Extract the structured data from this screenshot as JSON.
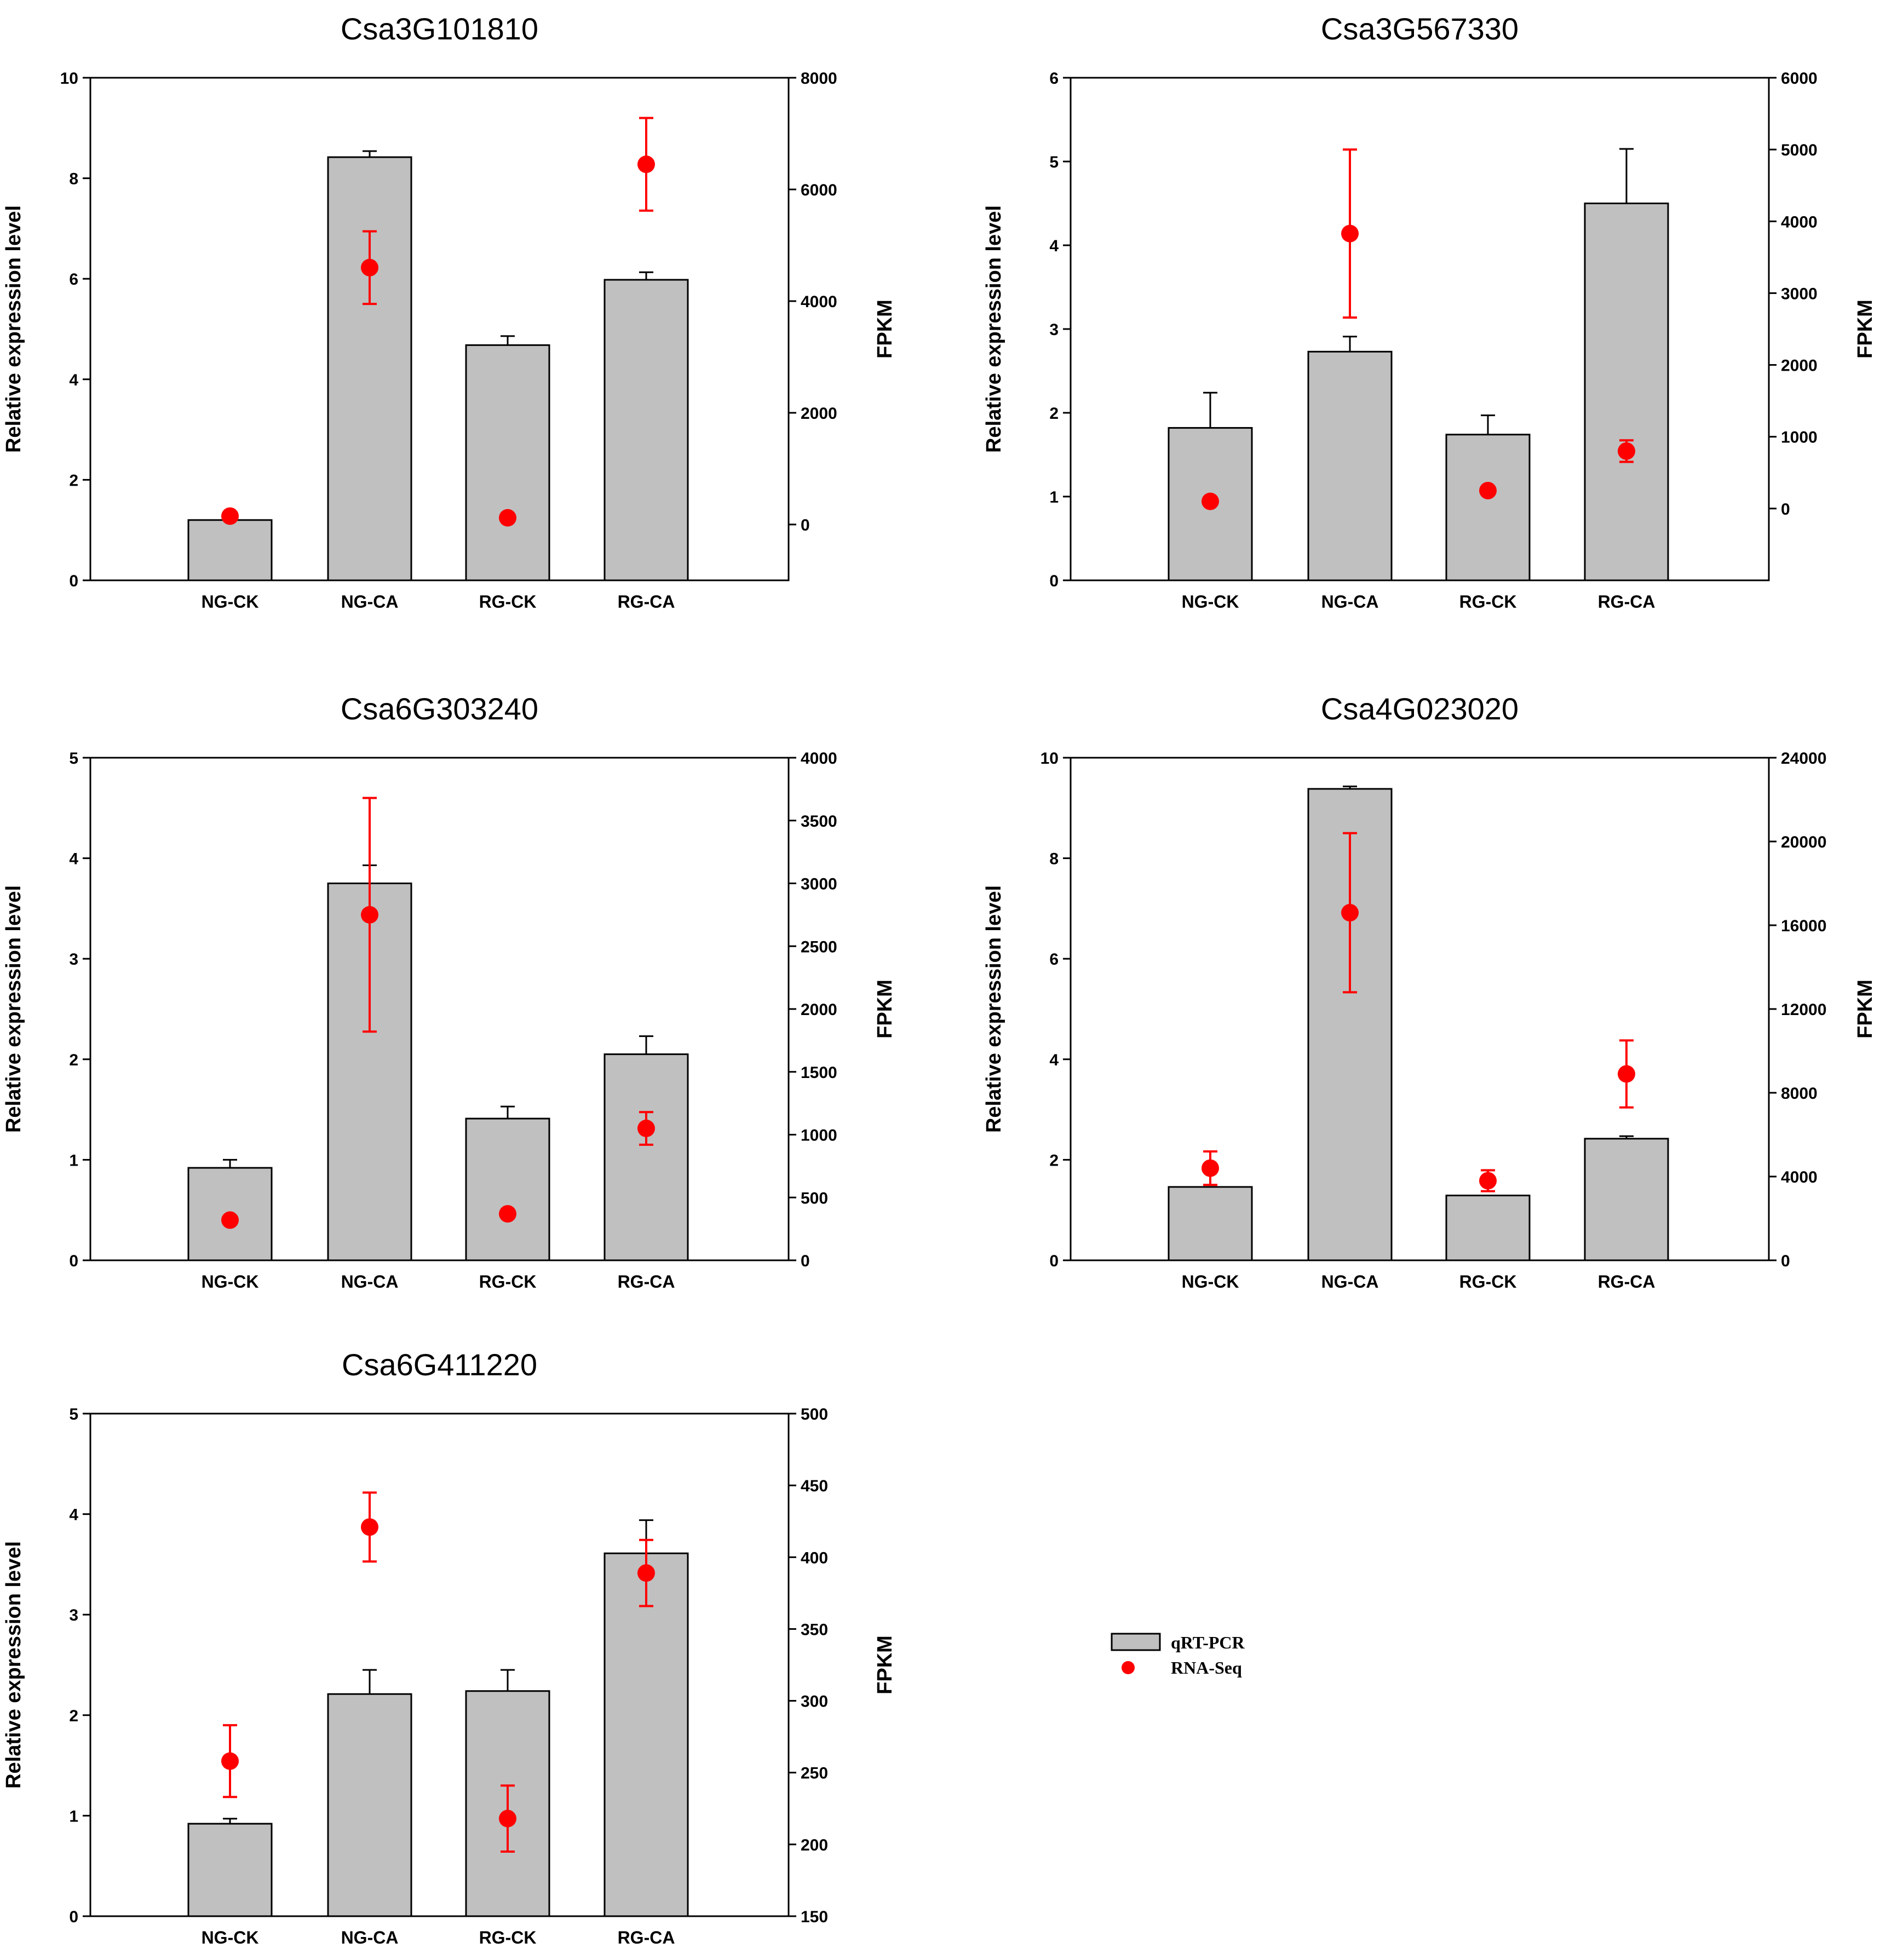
{
  "colors": {
    "bar": "#c0c0c0",
    "bar_edge": "#000000",
    "marker": "#ff0000",
    "axis": "#000000"
  },
  "legend": {
    "bar_label": "qRT-PCR",
    "marker_label": "RNA-Seq",
    "placement": "lower-right"
  },
  "chart_data": [
    {
      "type": "bar",
      "title": "Csa3G101810",
      "categories": [
        "NG-CK",
        "NG-CA",
        "RG-CK",
        "RG-CA"
      ],
      "ylabel": "Relative expression level",
      "y2label": "FPKM",
      "ylim": [
        0,
        10
      ],
      "yticks": [
        0,
        2,
        4,
        6,
        8,
        10
      ],
      "y2lim": [
        -1000,
        8000
      ],
      "y2ticks": [
        0,
        2000,
        4000,
        6000,
        8000
      ],
      "series": [
        {
          "name": "qRT-PCR",
          "axis": "left",
          "values": [
            1.2,
            8.42,
            4.68,
            5.98
          ],
          "errors": [
            0,
            0.12,
            0.18,
            0.15
          ]
        },
        {
          "name": "RNA-Seq",
          "axis": "right",
          "values": [
            150,
            4600,
            120,
            6450
          ],
          "errors": [
            0,
            650,
            0,
            830
          ]
        }
      ]
    },
    {
      "type": "bar",
      "title": "Csa3G567330",
      "categories": [
        "NG-CK",
        "NG-CA",
        "RG-CK",
        "RG-CA"
      ],
      "ylabel": "Relative expression level",
      "y2label": "FPKM",
      "ylim": [
        0,
        6
      ],
      "yticks": [
        0,
        1,
        2,
        3,
        4,
        5,
        6
      ],
      "y2lim": [
        -1000,
        6000
      ],
      "y2ticks": [
        0,
        1000,
        2000,
        3000,
        4000,
        5000,
        6000
      ],
      "series": [
        {
          "name": "qRT-PCR",
          "axis": "left",
          "values": [
            1.82,
            2.73,
            1.74,
            4.5
          ],
          "errors": [
            0.42,
            0.18,
            0.23,
            0.65
          ]
        },
        {
          "name": "RNA-Seq",
          "axis": "right",
          "values": [
            100,
            3830,
            250,
            800
          ],
          "errors": [
            0,
            1170,
            0,
            150
          ]
        }
      ]
    },
    {
      "type": "bar",
      "title": "Csa6G303240",
      "categories": [
        "NG-CK",
        "NG-CA",
        "RG-CK",
        "RG-CA"
      ],
      "ylabel": "Relative expression level",
      "y2label": "FPKM",
      "ylim": [
        0,
        5
      ],
      "yticks": [
        0,
        1,
        2,
        3,
        4,
        5
      ],
      "y2lim": [
        0,
        4000
      ],
      "y2ticks": [
        0,
        500,
        1000,
        1500,
        2000,
        2500,
        3000,
        3500,
        4000
      ],
      "series": [
        {
          "name": "qRT-PCR",
          "axis": "left",
          "values": [
            0.92,
            3.75,
            1.41,
            2.05
          ],
          "errors": [
            0.08,
            0.18,
            0.12,
            0.18
          ]
        },
        {
          "name": "RNA-Seq",
          "axis": "right",
          "values": [
            320,
            2750,
            370,
            1050
          ],
          "errors": [
            0,
            930,
            0,
            130
          ]
        }
      ]
    },
    {
      "type": "bar",
      "title": "Csa4G023020",
      "categories": [
        "NG-CK",
        "NG-CA",
        "RG-CK",
        "RG-CA"
      ],
      "ylabel": "Relative expression level",
      "y2label": "FPKM",
      "ylim": [
        0,
        10
      ],
      "yticks": [
        0,
        2,
        4,
        6,
        8,
        10
      ],
      "y2lim": [
        0,
        24000
      ],
      "y2ticks": [
        0,
        4000,
        8000,
        12000,
        16000,
        20000,
        24000
      ],
      "series": [
        {
          "name": "qRT-PCR",
          "axis": "left",
          "values": [
            1.46,
            9.38,
            1.29,
            2.42
          ],
          "errors": [
            0,
            0.05,
            0,
            0.05
          ]
        },
        {
          "name": "RNA-Seq",
          "axis": "right",
          "values": [
            4400,
            16600,
            3800,
            8900
          ],
          "errors": [
            800,
            3800,
            500,
            1600
          ]
        }
      ]
    },
    {
      "type": "bar",
      "title": "Csa6G411220",
      "categories": [
        "NG-CK",
        "NG-CA",
        "RG-CK",
        "RG-CA"
      ],
      "ylabel": "Relative expression level",
      "y2label": "FPKM",
      "ylim": [
        0,
        5
      ],
      "yticks": [
        0,
        1,
        2,
        3,
        4,
        5
      ],
      "y2lim": [
        150,
        500
      ],
      "y2ticks": [
        150,
        200,
        250,
        300,
        350,
        400,
        450,
        500
      ],
      "series": [
        {
          "name": "qRT-PCR",
          "axis": "left",
          "values": [
            0.92,
            2.21,
            2.24,
            3.61
          ],
          "errors": [
            0.05,
            0.24,
            0.21,
            0.33
          ]
        },
        {
          "name": "RNA-Seq",
          "axis": "right",
          "values": [
            258,
            421,
            218,
            389
          ],
          "errors": [
            25,
            24,
            23,
            23
          ]
        }
      ]
    }
  ]
}
